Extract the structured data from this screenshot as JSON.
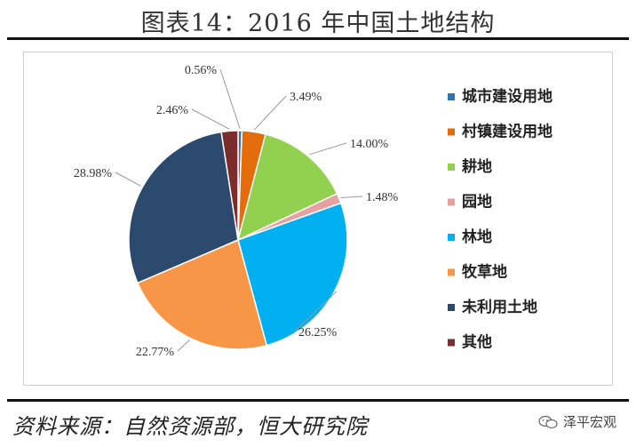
{
  "header": {
    "title": "图表14：2016 年中国土地结构"
  },
  "chart_data": {
    "type": "pie",
    "title": "图表14：2016 年中国土地结构",
    "legend_position": "right",
    "slices": [
      {
        "label": "城市建设用地",
        "value": 0.56,
        "display": "0.56%",
        "color": "#2e75b6"
      },
      {
        "label": "村镇建设用地",
        "value": 3.49,
        "display": "3.49%",
        "color": "#e46c0a"
      },
      {
        "label": "耕地",
        "value": 14.0,
        "display": "14.00%",
        "color": "#92d050"
      },
      {
        "label": "园地",
        "value": 1.48,
        "display": "1.48%",
        "color": "#e6a0a0"
      },
      {
        "label": "林地",
        "value": 26.25,
        "display": "26.25%",
        "color": "#00b0f0"
      },
      {
        "label": "牧草地",
        "value": 22.77,
        "display": "22.77%",
        "color": "#f79646"
      },
      {
        "label": "未利用土地",
        "value": 28.98,
        "display": "28.98%",
        "color": "#2c4a6e"
      },
      {
        "label": "其他",
        "value": 2.46,
        "display": "2.46%",
        "color": "#7b2c2c"
      }
    ]
  },
  "footer": {
    "source": "资料来源：自然资源部，恒大研究院",
    "watermark": "泽平宏观",
    "watermark_icon": "wechat-icon"
  }
}
